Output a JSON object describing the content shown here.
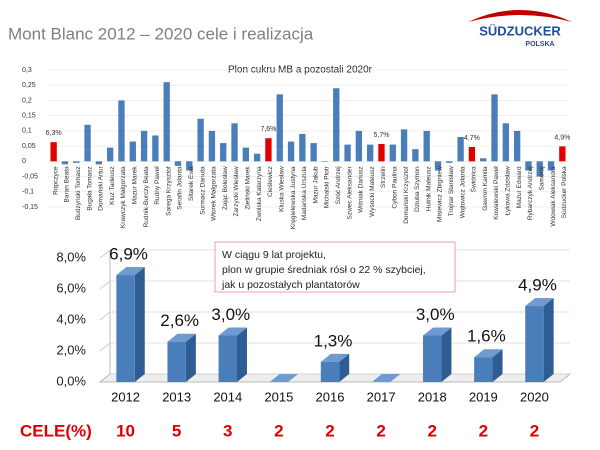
{
  "title": "Mont Blanc  2012 – 2020 cele i realizacja",
  "logo": {
    "name": "SÜDZUCKER",
    "sub": "POLSKA"
  },
  "chart_data": [
    {
      "type": "bar",
      "title": "Plon cukru MB a pozostali 2020r",
      "categories": [
        "Ropczyce",
        "Baran Beata",
        "Budzyński Tomasz",
        "Bugała Tomasz",
        "Domański Artur",
        "Kluz Tadeusz",
        "Krawczyk Małgorzata",
        "Mazur Marek",
        "Rudnik-Burczy Beata",
        "Rudny Paweł",
        "Sarega Krzysztof",
        "Serafin Jolanta",
        "Sitarek Ewa",
        "Surmacz Danuta",
        "Wtorek Małgorzata",
        "Zając Bolesław",
        "Zarzycki Wiesław",
        "Zieliński Marek",
        "Zwolska Katarzyna",
        "Cieślewicz",
        "Kluska Wiesław",
        "Kręgielewska Justyna",
        "Madańska Urszula",
        "Mazur Jakub",
        "Michalski Piotr",
        "Szóć Andrzej",
        "Szwec Aleksander",
        "Wiśniak Dariusz",
        "Wysocki Mateusz",
        "Strzelin",
        "Cybon Paulina",
        "Domański Krzysztof",
        "Dziuba Szymon",
        "Hutnik Mateusz",
        "Misiewicz Zbigniew",
        "Trojnar Stanisław",
        "Wojtowicz Jolanta",
        "Świdnica",
        "Gawron Kamila",
        "Kowalewski Paweł",
        "Łykowa Zdzisław",
        "Mazur Edward",
        "Rybarczyk Andrzej",
        "Samoraj",
        "Wdowiak Aleksandra",
        "Südzucker Polska"
      ],
      "values": [
        0.063,
        -0.01,
        -0.005,
        0.12,
        -0.01,
        0.045,
        0.2,
        0.065,
        0.1,
        0.085,
        0.26,
        -0.015,
        -0.03,
        0.14,
        0.1,
        0.06,
        0.125,
        0.045,
        0.025,
        0.076,
        0.22,
        0.065,
        0.09,
        0.06,
        0.0,
        0.24,
        0.055,
        0.1,
        0.055,
        0.057,
        0.055,
        0.105,
        0.04,
        0.1,
        -0.03,
        -0.005,
        0.08,
        0.047,
        0.01,
        0.22,
        0.125,
        0.1,
        -0.03,
        -0.05,
        -0.03,
        0.049
      ],
      "value_labels": [
        "6,3%",
        null,
        null,
        null,
        null,
        null,
        null,
        null,
        null,
        null,
        null,
        null,
        null,
        null,
        null,
        null,
        null,
        null,
        null,
        "7,6%",
        null,
        null,
        null,
        null,
        null,
        null,
        null,
        null,
        null,
        "5,7%",
        null,
        null,
        null,
        null,
        null,
        null,
        null,
        "4,7%",
        null,
        null,
        null,
        null,
        null,
        null,
        null,
        "4,9%"
      ],
      "colors": [
        "#e00000",
        "#4a7ebb",
        "#4a7ebb",
        "#4a7ebb",
        "#4a7ebb",
        "#4a7ebb",
        "#4a7ebb",
        "#4a7ebb",
        "#4a7ebb",
        "#4a7ebb",
        "#4a7ebb",
        "#4a7ebb",
        "#4a7ebb",
        "#4a7ebb",
        "#4a7ebb",
        "#4a7ebb",
        "#4a7ebb",
        "#4a7ebb",
        "#4a7ebb",
        "#e00000",
        "#4a7ebb",
        "#4a7ebb",
        "#4a7ebb",
        "#4a7ebb",
        "#4a7ebb",
        "#4a7ebb",
        "#4a7ebb",
        "#4a7ebb",
        "#4a7ebb",
        "#e00000",
        "#4a7ebb",
        "#4a7ebb",
        "#4a7ebb",
        "#4a7ebb",
        "#4a7ebb",
        "#4a7ebb",
        "#4a7ebb",
        "#e00000",
        "#4a7ebb",
        "#4a7ebb",
        "#4a7ebb",
        "#4a7ebb",
        "#4a7ebb",
        "#4a7ebb",
        "#4a7ebb",
        "#e00000"
      ],
      "ylim": [
        -0.15,
        0.3
      ],
      "yticks": [
        {
          "value": 0.3,
          "label": "0,3"
        },
        {
          "value": 0.25,
          "label": "0,25"
        },
        {
          "value": 0.2,
          "label": "0,2"
        },
        {
          "value": 0.15,
          "label": "0,15"
        },
        {
          "value": 0.1,
          "label": "0,1"
        },
        {
          "value": 0.05,
          "label": "0,05"
        },
        0,
        {
          "value": -0.05,
          "label": "-0,05"
        },
        {
          "value": -0.1,
          "label": "-0,1"
        },
        {
          "value": -0.15,
          "label": "-0,15"
        }
      ]
    },
    {
      "type": "bar3d",
      "categories": [
        "2012",
        "2013",
        "2014",
        "2015",
        "2016",
        "2017",
        "2018",
        "2019",
        "2020"
      ],
      "values": [
        6.9,
        2.6,
        3.0,
        0,
        1.3,
        0,
        3.0,
        1.6,
        4.9
      ],
      "value_labels": [
        "6,9%",
        "2,6%",
        "3,0%",
        null,
        "1,3%",
        null,
        "3,0%",
        "1,6%",
        "4,9%"
      ],
      "color": "#4a7ebb",
      "ylim": [
        0,
        8
      ],
      "yticks": [
        {
          "value": 0,
          "label": "0,0%"
        },
        {
          "value": 2,
          "label": "2,0%"
        },
        {
          "value": 4,
          "label": "4,0%"
        },
        {
          "value": 6,
          "label": "6,0%"
        },
        {
          "value": 8,
          "label": "8,0%"
        }
      ],
      "annotation": [
        "W ciągu 9 lat projektu,",
        "plon w grupie średniak rósł o 22 % szybciej,",
        "jak u pozostałych plantatorów"
      ]
    }
  ],
  "targets": {
    "label": "CELE(%)",
    "values": [
      10,
      5,
      3,
      2,
      2,
      2,
      2,
      2,
      2
    ]
  }
}
